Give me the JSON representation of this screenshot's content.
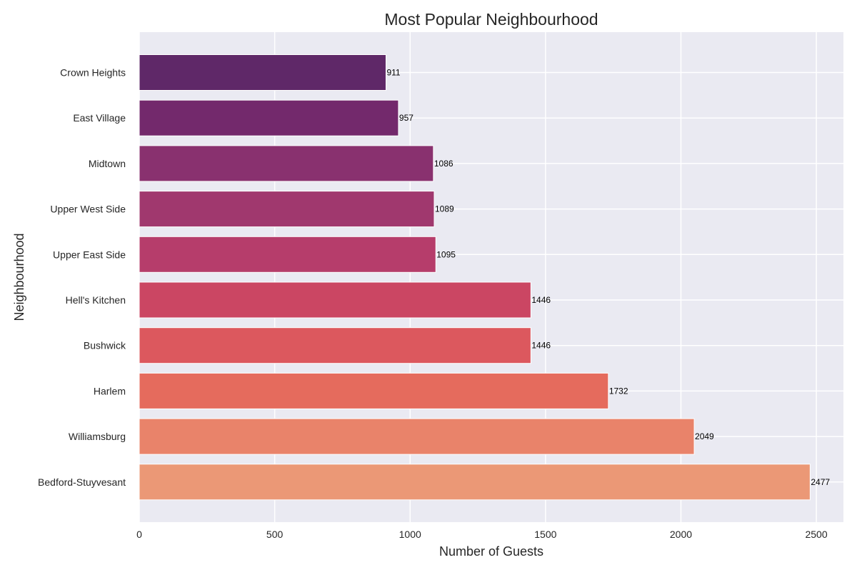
{
  "chart_data": {
    "type": "bar",
    "orientation": "horizontal",
    "title": "Most Popular Neighbourhood",
    "xlabel": "Number of Guests",
    "ylabel": "Neighbourhood",
    "categories": [
      "Crown Heights",
      "East Village",
      "Midtown",
      "Upper West Side",
      "Upper East Side",
      "Hell's Kitchen",
      "Bushwick",
      "Harlem",
      "Williamsburg",
      "Bedford-Stuyvesant"
    ],
    "values": [
      911,
      957,
      1086,
      1089,
      1095,
      1446,
      1446,
      1732,
      2049,
      2477
    ],
    "data_labels": [
      "911",
      "957",
      "1086",
      "1089",
      "1095",
      "1446",
      "1446",
      "1732",
      "2049",
      "2477"
    ],
    "xlim": [
      0,
      2600
    ],
    "xticks": [
      0,
      500,
      1000,
      1500,
      2000,
      2500
    ],
    "xtick_labels": [
      "0",
      "500",
      "1000",
      "1500",
      "2000",
      "2500"
    ],
    "grid": true,
    "style": "seaborn-darkgrid",
    "bar_colors": [
      "#5f2868",
      "#73296c",
      "#89316f",
      "#a0386e",
      "#b63d6b",
      "#cb4663",
      "#dc585e",
      "#e56b5d",
      "#e9836a",
      "#eb9876"
    ]
  },
  "colors": {
    "plot_background": "#eaeaf2",
    "grid": "#ffffff",
    "text": "#262626"
  }
}
